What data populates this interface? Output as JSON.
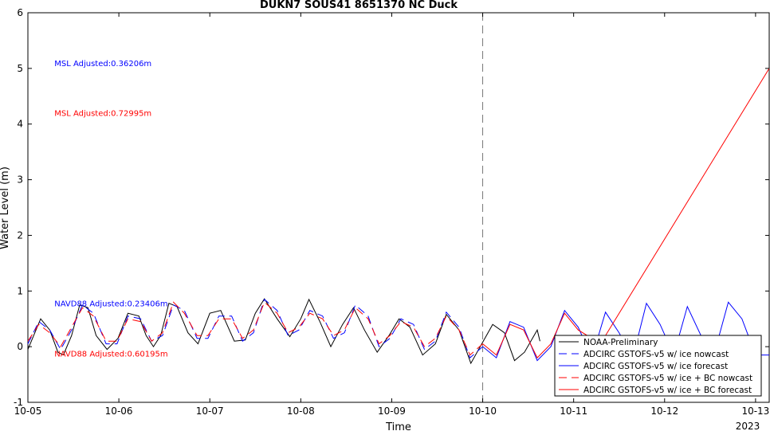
{
  "chart_data": {
    "type": "line",
    "title": "DUKN7 SOUS41 8651370 NC Duck",
    "xlabel": "Time",
    "ylabel": "Water Level (m)",
    "ylim": [
      -1,
      6
    ],
    "yticks": [
      -1,
      0,
      1,
      2,
      3,
      4,
      5,
      6
    ],
    "xlim_days": [
      0,
      8.15
    ],
    "xticks": [
      {
        "day": 0,
        "label": "10-05"
      },
      {
        "day": 1,
        "label": "10-06"
      },
      {
        "day": 2,
        "label": "10-07"
      },
      {
        "day": 3,
        "label": "10-08"
      },
      {
        "day": 4,
        "label": "10-09"
      },
      {
        "day": 5,
        "label": "10-10"
      },
      {
        "day": 6,
        "label": "10-11"
      },
      {
        "day": 7,
        "label": "10-12"
      },
      {
        "day": 8,
        "label": "10-13"
      }
    ],
    "year_label": "2023",
    "nowcast_marker_day": 5,
    "grid": false,
    "legend_position": "bottom-right",
    "annotations": [
      {
        "text": "MSL Adjusted:0.36206m",
        "color": "#0000ff",
        "x_day": 0.3,
        "y": 5.1
      },
      {
        "text": "MSL Adjusted:0.72995m",
        "color": "#ff0000",
        "x_day": 0.3,
        "y": 4.2
      },
      {
        "text": "NAVD88 Adjusted:0.23406m",
        "color": "#0000ff",
        "x_day": 0.3,
        "y": 0.78
      },
      {
        "text": "NAVD88 Adjusted:0.60195m",
        "color": "#ff0000",
        "x_day": 0.3,
        "y": -0.12
      }
    ],
    "series": [
      {
        "name": "NOAA-Preliminary",
        "color": "#000000",
        "dash": "solid",
        "x": [
          0,
          0.14,
          0.24,
          0.33,
          0.39,
          0.48,
          0.57,
          0.66,
          0.75,
          0.87,
          0.99,
          1.1,
          1.22,
          1.3,
          1.38,
          1.46,
          1.55,
          1.64,
          1.76,
          1.87,
          2.0,
          2.12,
          2.27,
          2.39,
          2.5,
          2.6,
          2.74,
          2.88,
          3.0,
          3.09,
          3.21,
          3.33,
          3.46,
          3.58,
          3.7,
          3.84,
          3.97,
          4.08,
          4.2,
          4.34,
          4.48,
          4.6,
          4.74,
          4.87,
          4.99,
          5.11,
          5.24,
          5.35,
          5.46,
          5.6,
          5.63
        ],
        "y": [
          -0.05,
          0.5,
          0.3,
          -0.1,
          -0.15,
          0.2,
          0.75,
          0.7,
          0.2,
          -0.05,
          0.15,
          0.6,
          0.55,
          0.2,
          0.0,
          0.2,
          0.78,
          0.72,
          0.25,
          0.05,
          0.6,
          0.65,
          0.1,
          0.12,
          0.6,
          0.86,
          0.5,
          0.18,
          0.5,
          0.85,
          0.45,
          0.0,
          0.4,
          0.7,
          0.3,
          -0.1,
          0.2,
          0.5,
          0.35,
          -0.15,
          0.05,
          0.58,
          0.3,
          -0.3,
          0.05,
          0.4,
          0.25,
          -0.25,
          -0.1,
          0.3,
          0.1
        ]
      },
      {
        "name": "ADCIRC GSTOFS-v5 w/ ice nowcast",
        "color": "#0000ff",
        "dash": "longdash",
        "x": [
          0,
          0.12,
          0.24,
          0.36,
          0.48,
          0.6,
          0.72,
          0.86,
          0.98,
          1.1,
          1.24,
          1.36,
          1.48,
          1.6,
          1.72,
          1.86,
          1.98,
          2.1,
          2.24,
          2.36,
          2.48,
          2.6,
          2.74,
          2.86,
          2.98,
          3.1,
          3.24,
          3.36,
          3.48,
          3.6,
          3.74,
          3.86,
          3.98,
          4.1,
          4.24,
          4.36,
          4.48,
          4.6,
          4.74,
          4.86,
          5.0
        ],
        "y": [
          0.05,
          0.45,
          0.3,
          -0.05,
          0.3,
          0.75,
          0.6,
          0.05,
          0.05,
          0.55,
          0.5,
          0.1,
          0.2,
          0.75,
          0.65,
          0.15,
          0.15,
          0.55,
          0.55,
          0.1,
          0.25,
          0.85,
          0.65,
          0.2,
          0.3,
          0.65,
          0.55,
          0.15,
          0.25,
          0.75,
          0.55,
          0.0,
          0.15,
          0.5,
          0.4,
          -0.05,
          0.1,
          0.62,
          0.35,
          -0.2,
          0.0
        ]
      },
      {
        "name": "ADCIRC GSTOFS-v5 w/ ice forecast",
        "color": "#0000ff",
        "dash": "solid",
        "x": [
          5.0,
          5.15,
          5.3,
          5.45,
          5.6,
          5.75,
          5.9,
          6.05,
          6.2,
          6.35,
          6.5,
          6.65,
          6.8,
          6.95,
          7.1,
          7.25,
          7.4,
          7.55,
          7.7,
          7.85,
          8.0,
          8.15
        ],
        "y": [
          0.0,
          -0.2,
          0.45,
          0.35,
          -0.25,
          0.0,
          0.65,
          0.35,
          -0.2,
          0.62,
          0.25,
          -0.2,
          0.78,
          0.4,
          -0.15,
          0.72,
          0.2,
          -0.1,
          0.8,
          0.5,
          -0.15,
          -0.15
        ]
      },
      {
        "name": "ADCIRC GSTOFS-v5 w/ ice + BC nowcast",
        "color": "#ff0000",
        "dash": "longdash",
        "x": [
          0,
          0.12,
          0.24,
          0.36,
          0.48,
          0.6,
          0.72,
          0.86,
          0.98,
          1.1,
          1.24,
          1.36,
          1.48,
          1.6,
          1.72,
          1.86,
          1.98,
          2.1,
          2.24,
          2.36,
          2.48,
          2.6,
          2.74,
          2.86,
          2.98,
          3.1,
          3.24,
          3.36,
          3.48,
          3.6,
          3.74,
          3.86,
          3.98,
          4.1,
          4.24,
          4.36,
          4.48,
          4.6,
          4.74,
          4.86,
          5.0
        ],
        "y": [
          0.1,
          0.4,
          0.25,
          0.0,
          0.35,
          0.7,
          0.55,
          0.1,
          0.1,
          0.5,
          0.45,
          0.1,
          0.25,
          0.8,
          0.6,
          0.2,
          0.2,
          0.5,
          0.5,
          0.15,
          0.3,
          0.8,
          0.6,
          0.25,
          0.35,
          0.6,
          0.5,
          0.2,
          0.3,
          0.7,
          0.5,
          0.05,
          0.2,
          0.45,
          0.35,
          0.0,
          0.15,
          0.55,
          0.3,
          -0.15,
          0.05
        ]
      },
      {
        "name": "ADCIRC GSTOFS-v5 w/ ice + BC forecast",
        "color": "#ff0000",
        "dash": "solid",
        "x": [
          5.0,
          5.15,
          5.3,
          5.45,
          5.6,
          5.75,
          5.9,
          6.05,
          6.2,
          6.35,
          8.15
        ],
        "y": [
          0.05,
          -0.15,
          0.4,
          0.3,
          -0.2,
          0.05,
          0.6,
          0.3,
          0.15,
          0.2,
          5.0
        ]
      }
    ]
  }
}
